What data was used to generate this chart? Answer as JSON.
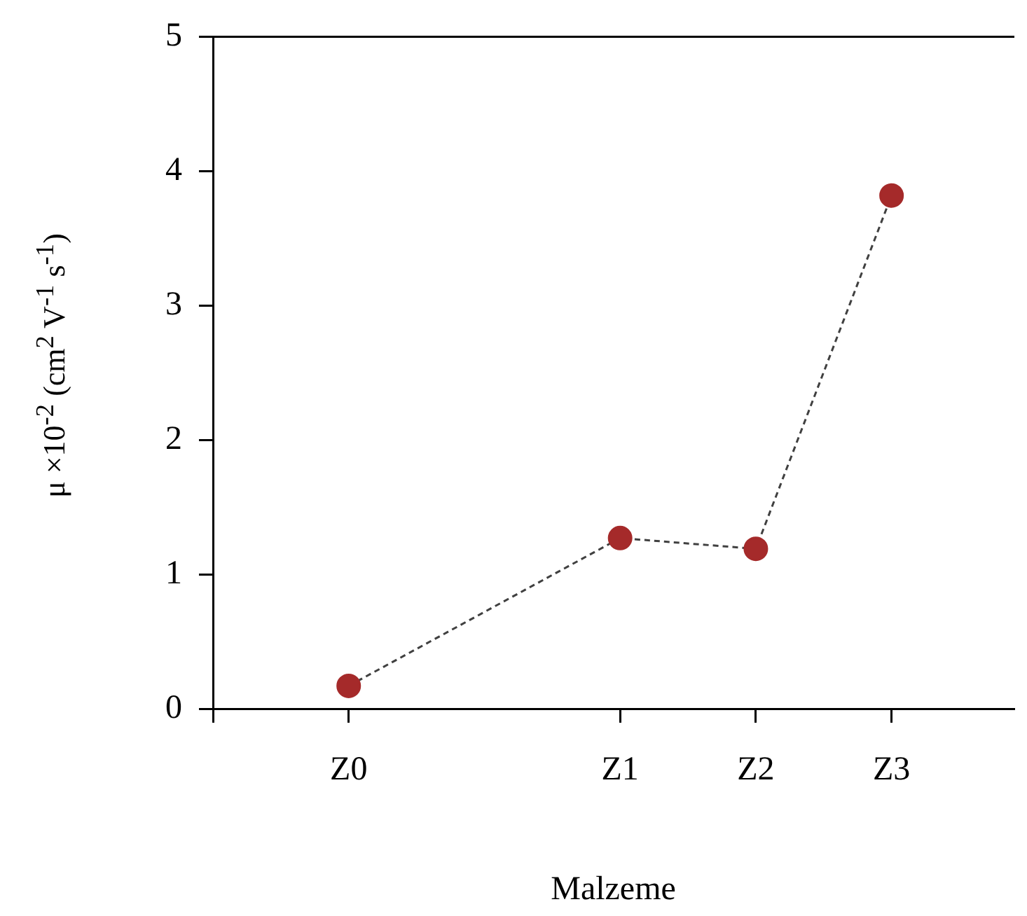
{
  "chart_data": {
    "type": "line",
    "xlabel": "Malzeme",
    "ylabel": "μ ×10$^{-2}$ (cm$^{2}$ V$^{-1}$ s$^{-1}$)",
    "categories": [
      "Z0",
      null,
      "Z1",
      "Z2",
      "Z3"
    ],
    "series": [
      {
        "color": "#a52a2a",
        "values": [
          0.17,
          null,
          1.27,
          1.19,
          3.82
        ]
      }
    ],
    "ylim": [
      0,
      5
    ],
    "yticks": [
      0,
      1,
      2,
      3,
      4,
      5
    ],
    "grid": false,
    "legend": false,
    "marker": "circle",
    "line_style": "dashed"
  }
}
